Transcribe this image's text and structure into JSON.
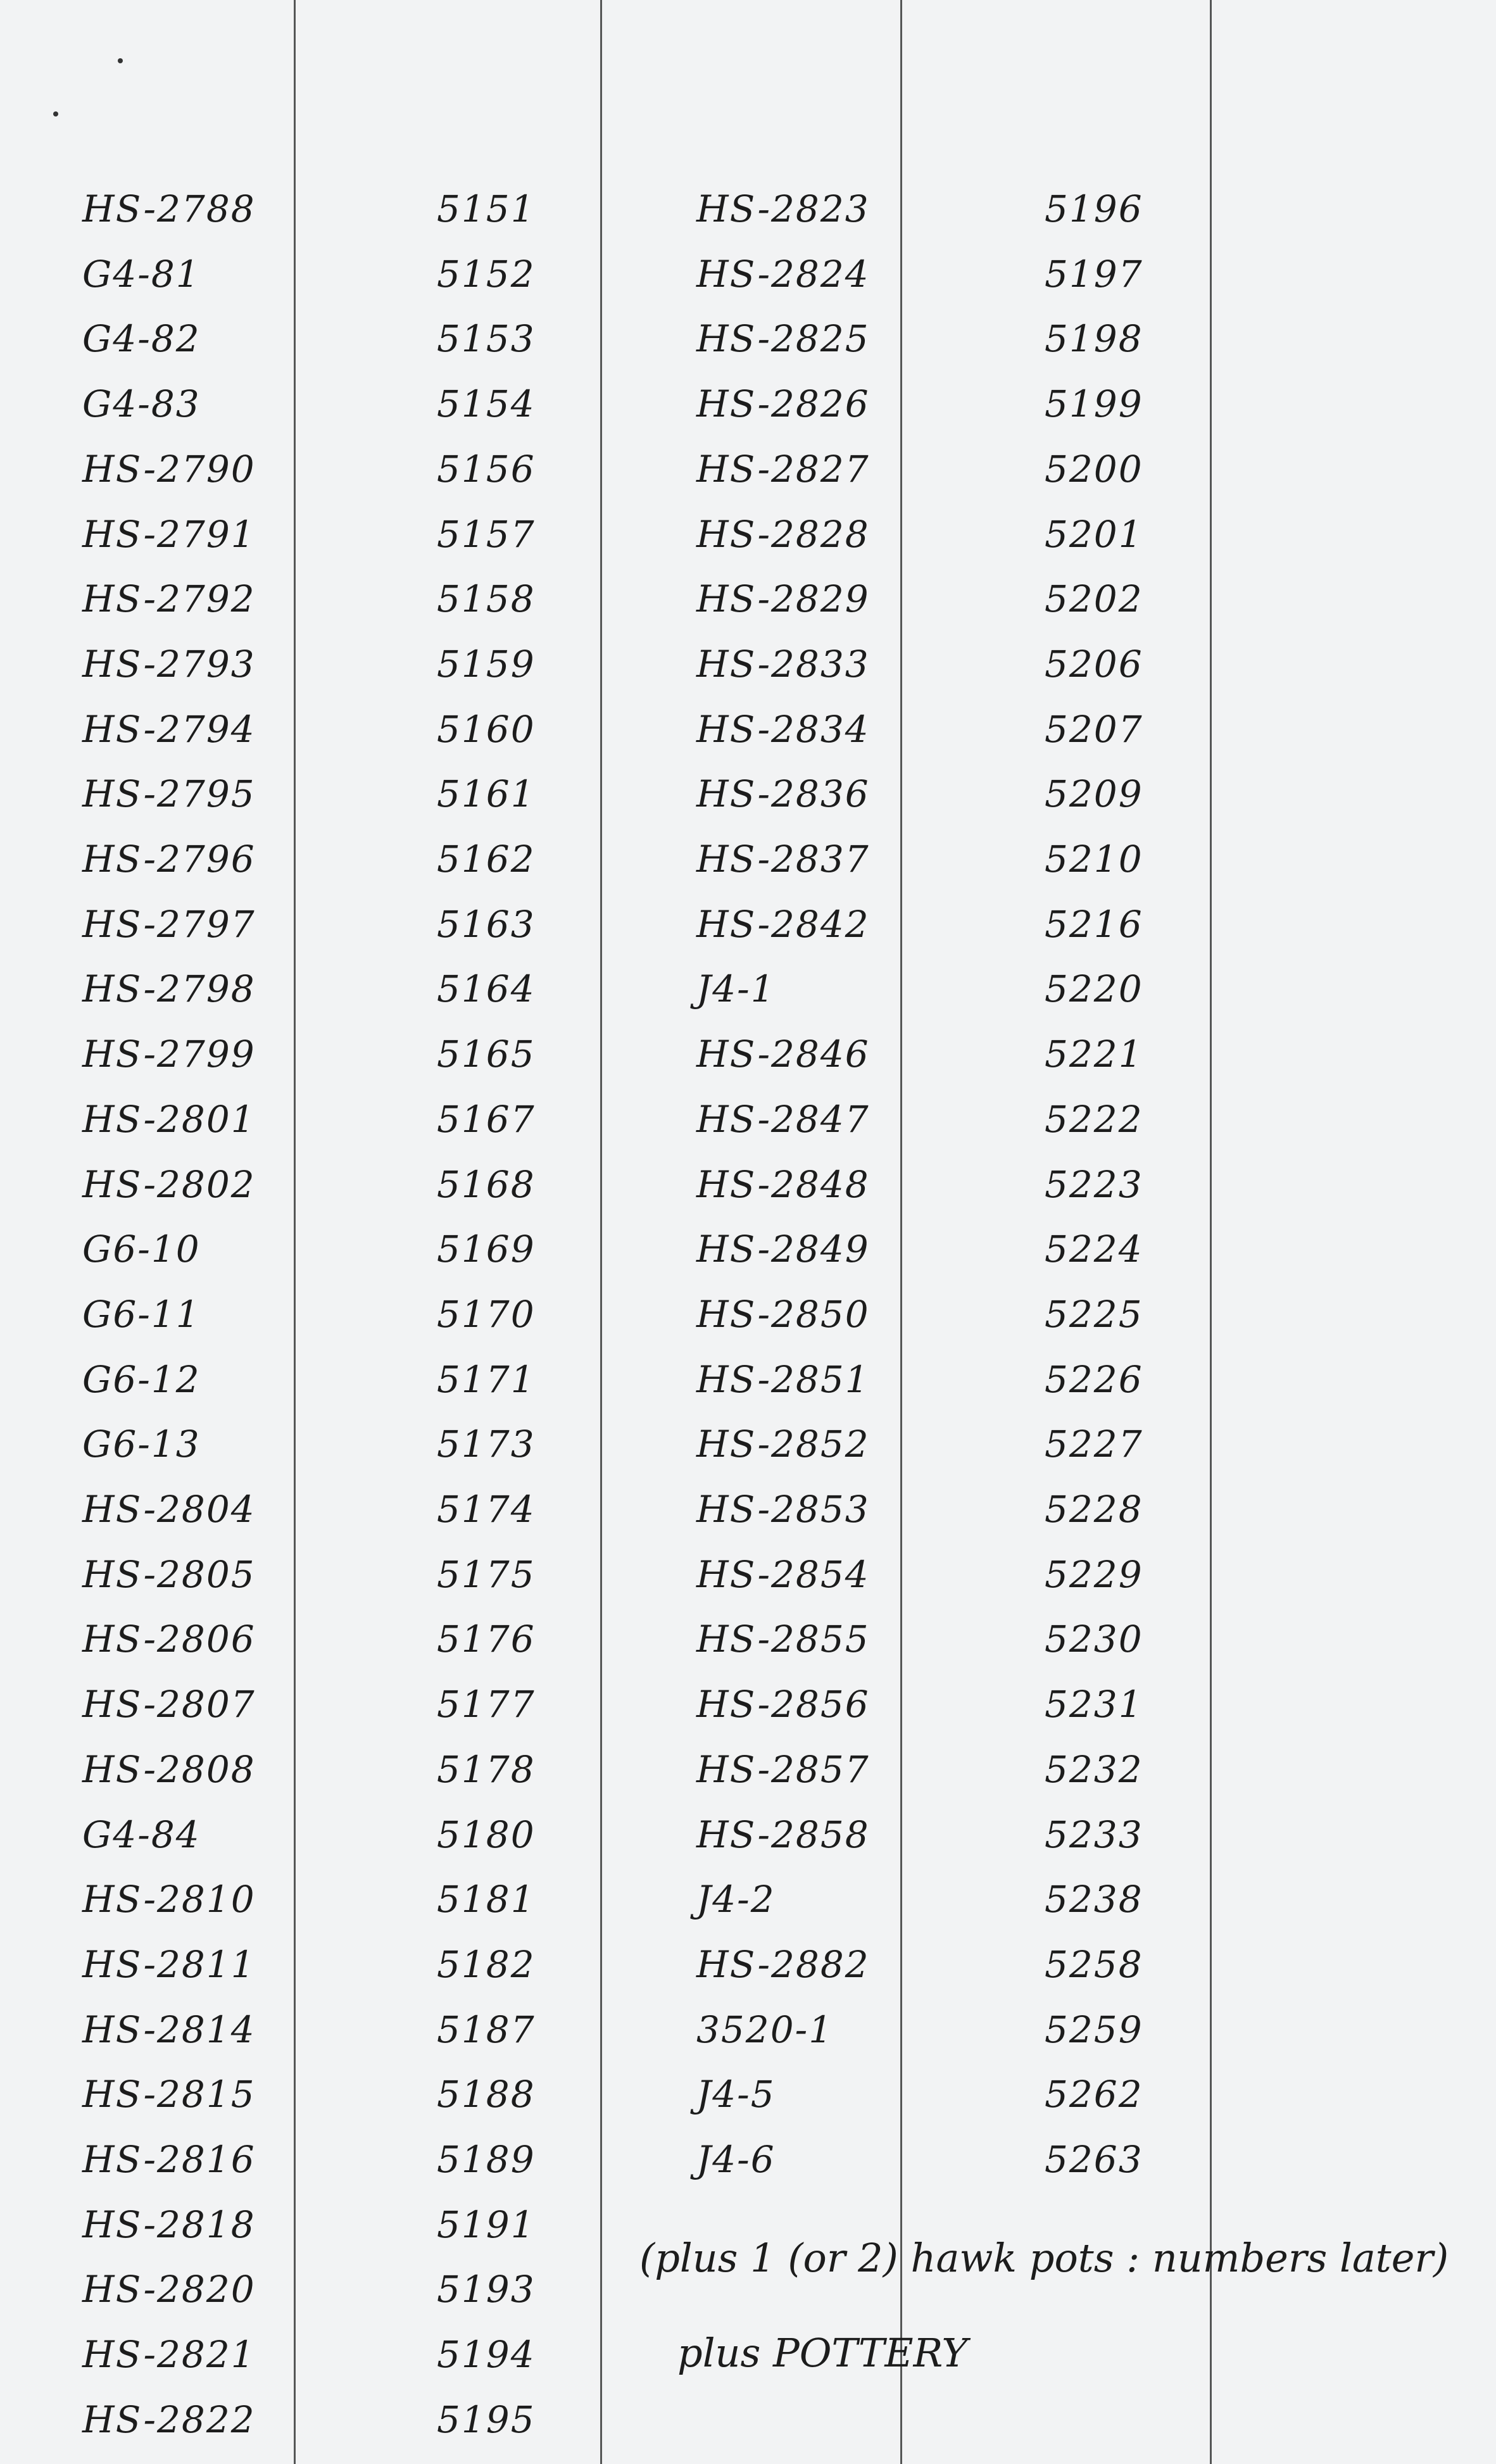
{
  "left_column": [
    {
      "code": "HS-2788",
      "number": "5151"
    },
    {
      "code": "G4-81",
      "number": "5152"
    },
    {
      "code": "G4-82",
      "number": "5153"
    },
    {
      "code": "G4-83",
      "number": "5154"
    },
    {
      "code": "HS-2790",
      "number": "5156"
    },
    {
      "code": "HS-2791",
      "number": "5157"
    },
    {
      "code": "HS-2792",
      "number": "5158"
    },
    {
      "code": "HS-2793",
      "number": "5159"
    },
    {
      "code": "HS-2794",
      "number": "5160"
    },
    {
      "code": "HS-2795",
      "number": "5161"
    },
    {
      "code": "HS-2796",
      "number": "5162"
    },
    {
      "code": "HS-2797",
      "number": "5163"
    },
    {
      "code": "HS-2798",
      "number": "5164"
    },
    {
      "code": "HS-2799",
      "number": "5165"
    },
    {
      "code": "HS-2801",
      "number": "5167"
    },
    {
      "code": "HS-2802",
      "number": "5168"
    },
    {
      "code": "G6-10",
      "number": "5169"
    },
    {
      "code": "G6-11",
      "number": "5170"
    },
    {
      "code": "G6-12",
      "number": "5171"
    },
    {
      "code": "G6-13",
      "number": "5173"
    },
    {
      "code": "HS-2804",
      "number": "5174"
    },
    {
      "code": "HS-2805",
      "number": "5175"
    },
    {
      "code": "HS-2806",
      "number": "5176"
    },
    {
      "code": "HS-2807",
      "number": "5177"
    },
    {
      "code": "HS-2808",
      "number": "5178"
    },
    {
      "code": "G4-84",
      "number": "5180"
    },
    {
      "code": "HS-2810",
      "number": "5181"
    },
    {
      "code": "HS-2811",
      "number": "5182"
    },
    {
      "code": "HS-2814",
      "number": "5187"
    },
    {
      "code": "HS-2815",
      "number": "5188"
    },
    {
      "code": "HS-2816",
      "number": "5189"
    },
    {
      "code": "HS-2818",
      "number": "5191"
    },
    {
      "code": "HS-2820",
      "number": "5193"
    },
    {
      "code": "HS-2821",
      "number": "5194"
    },
    {
      "code": "HS-2822",
      "number": "5195"
    }
  ],
  "right_column": [
    {
      "code": "HS-2823",
      "number": "5196"
    },
    {
      "code": "HS-2824",
      "number": "5197"
    },
    {
      "code": "HS-2825",
      "number": "5198"
    },
    {
      "code": "HS-2826",
      "number": "5199"
    },
    {
      "code": "HS-2827",
      "number": "5200"
    },
    {
      "code": "HS-2828",
      "number": "5201"
    },
    {
      "code": "HS-2829",
      "number": "5202"
    },
    {
      "code": "HS-2833",
      "number": "5206"
    },
    {
      "code": "HS-2834",
      "number": "5207"
    },
    {
      "code": "HS-2836",
      "number": "5209"
    },
    {
      "code": "HS-2837",
      "number": "5210"
    },
    {
      "code": "HS-2842",
      "number": "5216"
    },
    {
      "code": "J4-1",
      "number": "5220"
    },
    {
      "code": "HS-2846",
      "number": "5221"
    },
    {
      "code": "HS-2847",
      "number": "5222"
    },
    {
      "code": "HS-2848",
      "number": "5223"
    },
    {
      "code": "HS-2849",
      "number": "5224"
    },
    {
      "code": "HS-2850",
      "number": "5225"
    },
    {
      "code": "HS-2851",
      "number": "5226"
    },
    {
      "code": "HS-2852",
      "number": "5227"
    },
    {
      "code": "HS-2853",
      "number": "5228"
    },
    {
      "code": "HS-2854",
      "number": "5229"
    },
    {
      "code": "HS-2855",
      "number": "5230"
    },
    {
      "code": "HS-2856",
      "number": "5231"
    },
    {
      "code": "HS-2857",
      "number": "5232"
    },
    {
      "code": "HS-2858",
      "number": "5233"
    },
    {
      "code": "J4-2",
      "number": "5238"
    },
    {
      "code": "HS-2882",
      "number": "5258"
    },
    {
      "code": "3520-1",
      "number": "5259"
    },
    {
      "code": "J4-5",
      "number": "5262"
    },
    {
      "code": "J4-6",
      "number": "5263"
    }
  ],
  "notes": {
    "line1": "(plus 1 (or 2) hawk pots : numbers later)",
    "line2": "plus POTTERY"
  }
}
